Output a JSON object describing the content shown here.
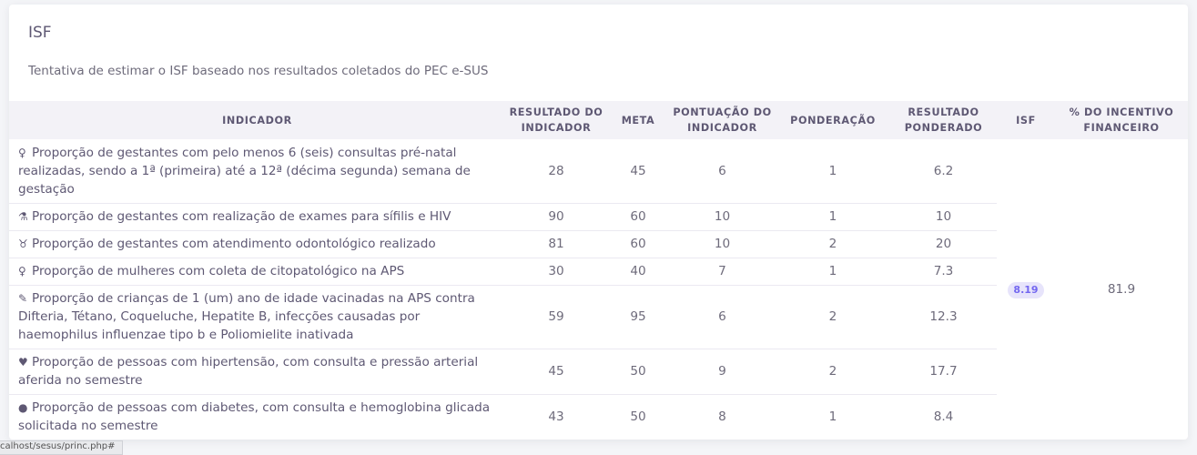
{
  "card": {
    "title": "ISF",
    "subtitle": "Tentativa de estimar o ISF baseado nos resultados coletados do PEC e-SUS"
  },
  "table": {
    "headers": {
      "indicador": "INDICADOR",
      "resultado_indicador": "RESULTADO DO INDICADOR",
      "meta": "META",
      "pontuacao": "PONTUAÇÃO DO INDICADOR",
      "ponderacao": "PONDERAÇÃO",
      "resultado_ponderado": "RESULTADO PONDERADO",
      "isf": "ISF",
      "incentivo": "% DO INCENTIVO FINANCEIRO"
    },
    "rows": [
      {
        "icon": "pregnant-woman-icon",
        "glyph": "♀",
        "indicador": "Proporção de gestantes com pelo menos 6 (seis) consultas pré-natal realizadas, sendo a 1ª (primeira) até a 12ª (décima segunda) semana de gestação",
        "resultado": "28",
        "meta": "45",
        "pontuacao": "6",
        "ponderacao": "1",
        "ponderado": "6.2"
      },
      {
        "icon": "flask-icon",
        "glyph": "⚗",
        "indicador": "Proporção de gestantes com realização de exames para sífilis e HIV",
        "resultado": "90",
        "meta": "60",
        "pontuacao": "10",
        "ponderacao": "1",
        "ponderado": "10"
      },
      {
        "icon": "tooth-icon",
        "glyph": "♉",
        "indicador": "Proporção de gestantes com atendimento odontológico realizado",
        "resultado": "81",
        "meta": "60",
        "pontuacao": "10",
        "ponderacao": "2",
        "ponderado": "20"
      },
      {
        "icon": "woman-icon",
        "glyph": "♀",
        "indicador": "Proporção de mulheres com coleta de citopatológico na APS",
        "resultado": "30",
        "meta": "40",
        "pontuacao": "7",
        "ponderacao": "1",
        "ponderado": "7.3"
      },
      {
        "icon": "syringe-icon",
        "glyph": "✎",
        "indicador": "Proporção de crianças de 1 (um) ano de idade vacinadas na APS contra Difteria, Tétano, Coqueluche, Hepatite B, infecções causadas por haemophilus influenzae tipo b e Poliomielite inativada",
        "resultado": "59",
        "meta": "95",
        "pontuacao": "6",
        "ponderacao": "2",
        "ponderado": "12.3"
      },
      {
        "icon": "heart-pulse-icon",
        "glyph": "♥",
        "indicador": "Proporção de pessoas com hipertensão, com consulta e pressão arterial aferida no semestre",
        "resultado": "45",
        "meta": "50",
        "pontuacao": "9",
        "ponderacao": "2",
        "ponderado": "17.7"
      },
      {
        "icon": "droplet-icon",
        "glyph": "●",
        "indicador": "Proporção de pessoas com diabetes, com consulta e hemoglobina glicada solicitada no semestre",
        "resultado": "43",
        "meta": "50",
        "pontuacao": "8",
        "ponderacao": "1",
        "ponderado": "8.4"
      }
    ],
    "isf_value": "8.19",
    "incentivo_value": "81.9"
  },
  "status_bar": {
    "url": "calhost/sesus/princ.php#"
  },
  "colors": {
    "accent": "#7367f0",
    "header_bg": "#f3f2f7",
    "text": "#5e5873"
  }
}
